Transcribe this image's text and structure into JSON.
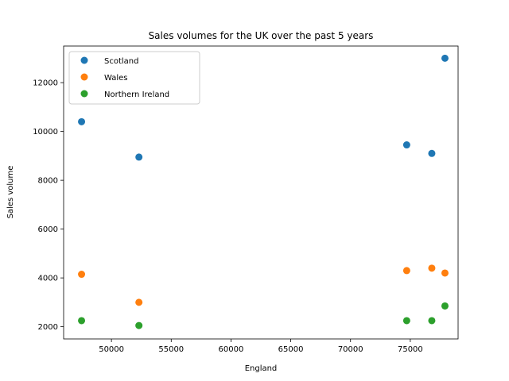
{
  "chart_data": {
    "type": "scatter",
    "title": "Sales volumes for the UK over the past 5 years",
    "xlabel": "England",
    "ylabel": "Sales volume",
    "xlim": [
      46000,
      79000
    ],
    "ylim": [
      1500,
      13500
    ],
    "xticks": [
      50000,
      55000,
      60000,
      65000,
      70000,
      75000
    ],
    "yticks": [
      2000,
      4000,
      6000,
      8000,
      10000,
      12000
    ],
    "grid": false,
    "legend_position": "upper-left",
    "x": [
      47500,
      52300,
      74700,
      76800,
      77900
    ],
    "series": [
      {
        "name": "Scotland",
        "color": "#1f77b4",
        "values": [
          10400,
          8950,
          9450,
          9100,
          13000
        ]
      },
      {
        "name": "Wales",
        "color": "#ff7f0e",
        "values": [
          4150,
          3000,
          4300,
          4400,
          4200
        ]
      },
      {
        "name": "Northern Ireland",
        "color": "#2ca02c",
        "values": [
          2250,
          2050,
          2250,
          2250,
          2850
        ]
      }
    ]
  }
}
